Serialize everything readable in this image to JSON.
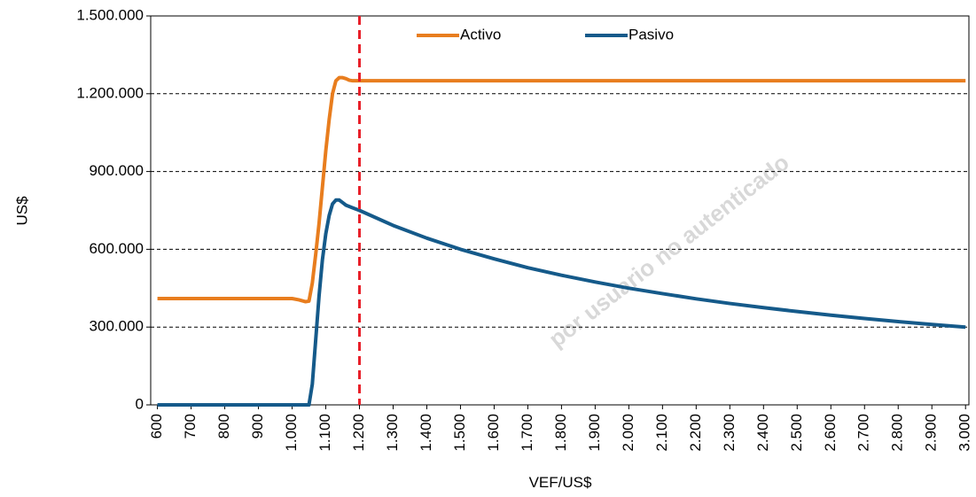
{
  "chart_data": {
    "type": "line",
    "x_label": "VEF/US$",
    "y_label": "US$",
    "x": [
      600,
      700,
      800,
      900,
      1000,
      1020,
      1040,
      1050,
      1060,
      1070,
      1080,
      1090,
      1100,
      1110,
      1120,
      1130,
      1140,
      1150,
      1160,
      1170,
      1180,
      1200,
      1300,
      1400,
      1500,
      1600,
      1700,
      1800,
      1900,
      2000,
      2100,
      2200,
      2300,
      2400,
      2500,
      2600,
      2700,
      2800,
      2900,
      3000
    ],
    "series": [
      {
        "name": "Activo",
        "color": "#e87d1e",
        "values": [
          410000,
          410000,
          410000,
          410000,
          410000,
          405000,
          398000,
          400000,
          470000,
          580000,
          700000,
          840000,
          980000,
          1100000,
          1200000,
          1250000,
          1262000,
          1262000,
          1258000,
          1252000,
          1250000,
          1250000,
          1250000,
          1250000,
          1250000,
          1250000,
          1250000,
          1250000,
          1250000,
          1250000,
          1250000,
          1250000,
          1250000,
          1250000,
          1250000,
          1250000,
          1250000,
          1250000,
          1250000,
          1250000
        ]
      },
      {
        "name": "Pasivo",
        "color": "#155a8a",
        "values": [
          0,
          0,
          0,
          0,
          0,
          0,
          0,
          0,
          80000,
          250000,
          420000,
          560000,
          660000,
          730000,
          775000,
          790000,
          790000,
          780000,
          770000,
          765000,
          760000,
          750000,
          692000,
          643000,
          600000,
          563000,
          529000,
          500000,
          474000,
          450000,
          429000,
          409000,
          391000,
          375000,
          360000,
          346000,
          333000,
          321000,
          310000,
          300000
        ]
      }
    ],
    "xlim": [
      580,
      3010
    ],
    "xticks": [
      600,
      700,
      800,
      900,
      {
        "value": 1000,
        "label": "1.000"
      },
      {
        "value": 1100,
        "label": "1.100"
      },
      {
        "value": 1200,
        "label": "1.200"
      },
      {
        "value": 1300,
        "label": "1.300"
      },
      {
        "value": 1400,
        "label": "1.400"
      },
      {
        "value": 1500,
        "label": "1.500"
      },
      {
        "value": 1600,
        "label": "1.600"
      },
      {
        "value": 1700,
        "label": "1.700"
      },
      {
        "value": 1800,
        "label": "1.800"
      },
      {
        "value": 1900,
        "label": "1.900"
      },
      {
        "value": 2000,
        "label": "2.000"
      },
      {
        "value": 2100,
        "label": "2.100"
      },
      {
        "value": 2200,
        "label": "2.200"
      },
      {
        "value": 2300,
        "label": "2.300"
      },
      {
        "value": 2400,
        "label": "2.400"
      },
      {
        "value": 2500,
        "label": "2.500"
      },
      {
        "value": 2600,
        "label": "2.600"
      },
      {
        "value": 2700,
        "label": "2.700"
      },
      {
        "value": 2800,
        "label": "2.800"
      },
      {
        "value": 2900,
        "label": "2.900"
      },
      {
        "value": 3000,
        "label": "3.000"
      }
    ],
    "ylim": [
      0,
      1500000
    ],
    "yticks": [
      0,
      {
        "value": 300000,
        "label": "300.000"
      },
      {
        "value": 600000,
        "label": "600.000"
      },
      {
        "value": 900000,
        "label": "900.000"
      },
      {
        "value": 1200000,
        "label": "1.200.000"
      },
      {
        "value": 1500000,
        "label": "1.500.000"
      }
    ],
    "grid": true,
    "reference_line_x": 1200,
    "reference_line_color": "#e8202a",
    "legend": "top",
    "watermark": "por usuario no autenticado"
  }
}
